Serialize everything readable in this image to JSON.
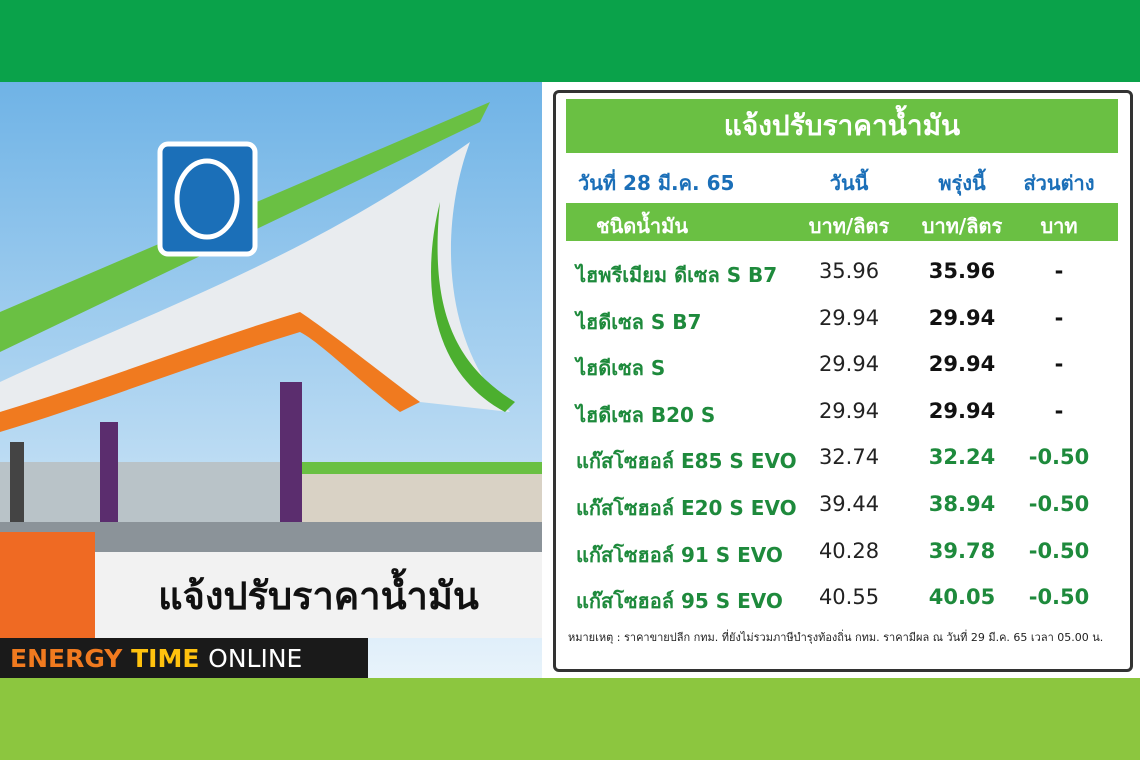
{
  "panel": {
    "title": "แจ้งปรับราคาน้ำมัน",
    "date": "วันที่ 28 มี.ค. 65",
    "columns": [
      "วันนี้",
      "พรุ่งนี้",
      "ส่วนต่าง"
    ],
    "subheader": [
      "ชนิดน้ำมัน",
      "บาท/ลิตร",
      "บาท/ลิตร",
      "บาท"
    ],
    "rows": [
      [
        "ไฮพรีเมียม ดีเซล S B7",
        "35.96",
        "35.96",
        "-"
      ],
      [
        "ไฮดีเซล S B7",
        "29.94",
        "29.94",
        "-"
      ],
      [
        "ไฮดีเซล S",
        "29.94",
        "29.94",
        "-"
      ],
      [
        "ไฮดีเซล B20 S",
        "29.94",
        "29.94",
        "-"
      ],
      [
        "แก๊สโซฮอล์ E85 S EVO",
        "32.74",
        "32.24",
        "-0.50"
      ],
      [
        "แก๊สโซฮอล์ E20 S EVO",
        "39.44",
        "38.94",
        "-0.50"
      ],
      [
        "แก๊สโซฮอล์ 91 S EVO",
        "40.28",
        "39.78",
        "-0.50"
      ],
      [
        "แก๊สโซฮอล์ 95 S EVO",
        "40.55",
        "40.05",
        "-0.50"
      ]
    ],
    "note": "หมายเหตุ :  ราคาขายปลีก กทม. ที่ยังไม่รวมภาษีบำรุงท้องถิ่น กทม.  ราคามีผล ณ วันที่ 29 มี.ค. 65 เวลา 05.00 น."
  },
  "caption": {
    "headline": "แจ้งปรับราคาน้ำมัน",
    "brand": [
      "ENERGY",
      "TIME",
      "ONLINE"
    ]
  }
}
